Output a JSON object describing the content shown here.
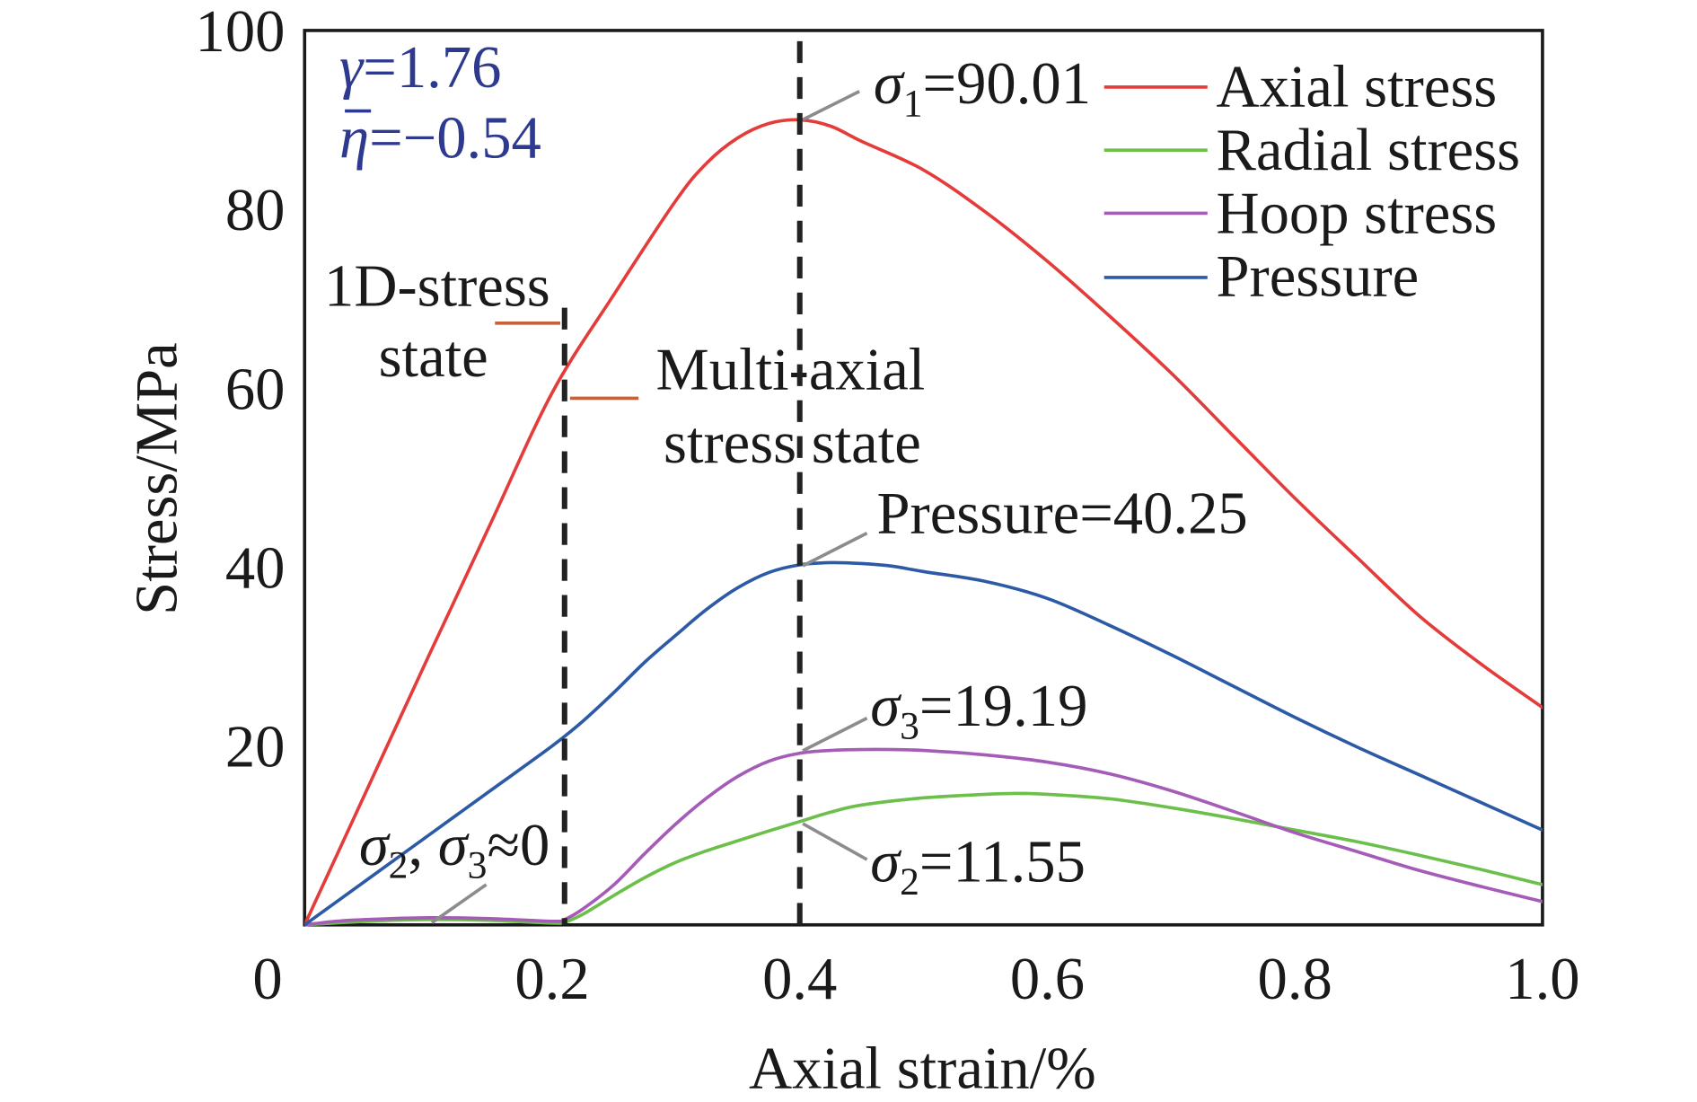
{
  "chart_data": {
    "type": "line",
    "xlabel": "Axial strain/%",
    "ylabel": "Stress/MPa",
    "xlim": [
      0,
      1.0
    ],
    "ylim": [
      0,
      100
    ],
    "x_ticks": [
      {
        "value": 0,
        "label": "0"
      },
      {
        "value": 0.2,
        "label": "0.2"
      },
      {
        "value": 0.4,
        "label": "0.4"
      },
      {
        "value": 0.6,
        "label": "0.6"
      },
      {
        "value": 0.8,
        "label": "0.8"
      },
      {
        "value": 1.0,
        "label": "1.0"
      }
    ],
    "y_ticks": [
      {
        "value": 20,
        "label": "20"
      },
      {
        "value": 40,
        "label": "40"
      },
      {
        "value": 60,
        "label": "60"
      },
      {
        "value": 80,
        "label": "80"
      },
      {
        "value": 100,
        "label": "100"
      }
    ],
    "grid": false,
    "legend_position": "top-right",
    "series": [
      {
        "name": "Axial stress",
        "color": "#e43b3b",
        "x": [
          0,
          0.05,
          0.1,
          0.15,
          0.2,
          0.25,
          0.3,
          0.325,
          0.35,
          0.375,
          0.4,
          0.425,
          0.45,
          0.5,
          0.55,
          0.6,
          0.65,
          0.7,
          0.75,
          0.8,
          0.85,
          0.9,
          0.95,
          1.0
        ],
        "y": [
          0,
          15,
          30,
          44.8,
          59.5,
          70.5,
          81,
          85.2,
          88,
          89.6,
          90.01,
          89.3,
          87.6,
          84.4,
          79.7,
          74.2,
          68.1,
          61.7,
          54.7,
          47.7,
          41.1,
          34.6,
          29.2,
          24.3
        ]
      },
      {
        "name": "Radial stress",
        "color": "#6cbf4b",
        "x": [
          0,
          0.05,
          0.1,
          0.15,
          0.2,
          0.21,
          0.225,
          0.25,
          0.275,
          0.3,
          0.325,
          0.35,
          0.375,
          0.4,
          0.425,
          0.45,
          0.5,
          0.55,
          0.575,
          0.6,
          0.65,
          0.7,
          0.75,
          0.8,
          0.85,
          0.9,
          0.95,
          1.0
        ],
        "y": [
          0,
          0.4,
          0.6,
          0.5,
          0.2,
          0.3,
          1.2,
          3.3,
          5.3,
          7,
          8.3,
          9.4,
          10.5,
          11.55,
          12.6,
          13.4,
          14.2,
          14.6,
          14.7,
          14.6,
          14.1,
          13.1,
          11.9,
          10.6,
          9.3,
          7.8,
          6.2,
          4.5
        ]
      },
      {
        "name": "Hoop stress",
        "color": "#a45cb6",
        "x": [
          0,
          0.025,
          0.05,
          0.1,
          0.15,
          0.2,
          0.21,
          0.225,
          0.25,
          0.275,
          0.3,
          0.325,
          0.35,
          0.375,
          0.4,
          0.425,
          0.45,
          0.475,
          0.5,
          0.55,
          0.6,
          0.65,
          0.7,
          0.75,
          0.8,
          0.85,
          0.9,
          0.95,
          1.0
        ],
        "y": [
          0,
          0.4,
          0.6,
          0.8,
          0.7,
          0.4,
          0.6,
          1.8,
          4.5,
          8,
          11.3,
          14.2,
          16.6,
          18.3,
          19.19,
          19.5,
          19.6,
          19.6,
          19.5,
          19,
          18.2,
          16.9,
          15,
          12.7,
          10.3,
          8.2,
          6.1,
          4.3,
          2.6
        ]
      },
      {
        "name": "Pressure",
        "color": "#2c5aa6",
        "x": [
          0,
          0.05,
          0.1,
          0.15,
          0.2,
          0.225,
          0.25,
          0.275,
          0.3,
          0.325,
          0.35,
          0.375,
          0.4,
          0.425,
          0.45,
          0.475,
          0.5,
          0.55,
          0.6,
          0.65,
          0.7,
          0.75,
          0.8,
          0.85,
          0.9,
          0.95,
          1.0
        ],
        "y": [
          0,
          5,
          10,
          15,
          20,
          22.8,
          26,
          29.4,
          32.4,
          35.3,
          37.7,
          39.4,
          40.25,
          40.5,
          40.4,
          40.1,
          39.5,
          38.4,
          36.5,
          33.5,
          30.2,
          26.7,
          23.2,
          19.9,
          16.8,
          13.7,
          10.6
        ]
      }
    ],
    "reference_lines": [
      {
        "x": 0.21,
        "style": "dashed"
      },
      {
        "x": 0.4,
        "style": "dashed"
      }
    ],
    "annotations": {
      "gamma": {
        "symbol": "γ",
        "value": "=1.76"
      },
      "eta_mean": {
        "symbol": "η",
        "value": "=−0.54"
      },
      "sigma1_peak": {
        "symbol": "σ",
        "sub": "1",
        "value": "=90.01"
      },
      "pressure_peak": {
        "text": "Pressure=40.25"
      },
      "sigma3_peak": {
        "symbol": "σ",
        "sub": "3",
        "value": "=19.19"
      },
      "sigma2_peak": {
        "symbol": "σ",
        "sub": "2",
        "value": "=11.55"
      },
      "near_zero": {
        "symbol_a": "σ",
        "sub_a": "2",
        "separator": ", ",
        "symbol_b": "σ",
        "sub_b": "3",
        "value": "≈0"
      },
      "region_1d": {
        "line1": "1D-stress",
        "line2": "state"
      },
      "region_multiaxial": {
        "line1": "Multi-axial",
        "line2": "stress state"
      }
    },
    "colors": {
      "annotation_params": "#2e3a8f",
      "region_marker": "#c4623a",
      "leader": "#8c8c8c",
      "reference_line": "#222222"
    }
  }
}
